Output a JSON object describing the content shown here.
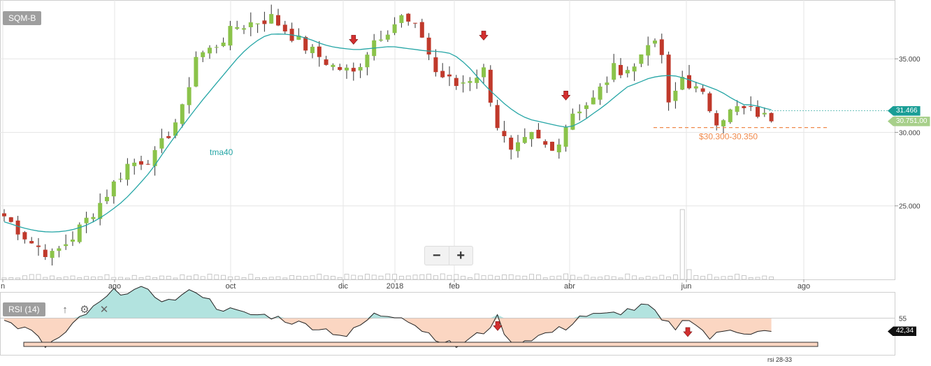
{
  "ticker": "SQM-B",
  "zoom": {
    "minus": "−",
    "plus": "+"
  },
  "indicator": {
    "label": "RSI (14)",
    "up_icon": "↑",
    "gear_icon": "⚙",
    "close_icon": "✕"
  },
  "colors": {
    "up": "#8bc34a",
    "down": "#c0392b",
    "wick": "#333333",
    "ma": "#26a6a6",
    "support": "#f08a4b",
    "rsi_above": "#b2e3df",
    "rsi_below": "#fbd6c2",
    "arrow": "#d32f2f",
    "grid": "#e6e6e6",
    "current_tag": "#1a9e96",
    "last_tag": "#a7cf8a"
  },
  "chart_data": [
    {
      "type": "candlestick",
      "title": "SQM-B",
      "x_ticks": [
        "n",
        "ago",
        "oct",
        "dic",
        "2018",
        "feb",
        "abr",
        "jun",
        "ago"
      ],
      "y_ticks": [
        25000,
        30000,
        35000
      ],
      "y_tick_labels": [
        "25.000",
        "30.000",
        "35.000"
      ],
      "ylim": [
        20000,
        39000
      ],
      "moving_average": {
        "label": "tma40"
      },
      "support_zone": {
        "low": 30300,
        "high": 30350,
        "label": "$30.300-30.350"
      },
      "current_value": {
        "value": 31466,
        "label": "31.466"
      },
      "last_value": {
        "value": 30751,
        "label": "30.751,00"
      },
      "arrows_at_weeks": [
        51,
        70,
        82
      ],
      "volume_spike": "jun",
      "grid": true
    },
    {
      "type": "line",
      "title": "RSI (14)",
      "level": {
        "value": 55,
        "label": "55"
      },
      "current_value": {
        "value": 42.34,
        "label": "42,34"
      },
      "band": {
        "low": 28,
        "high": 33,
        "label": "rsi 28-33"
      }
    }
  ]
}
